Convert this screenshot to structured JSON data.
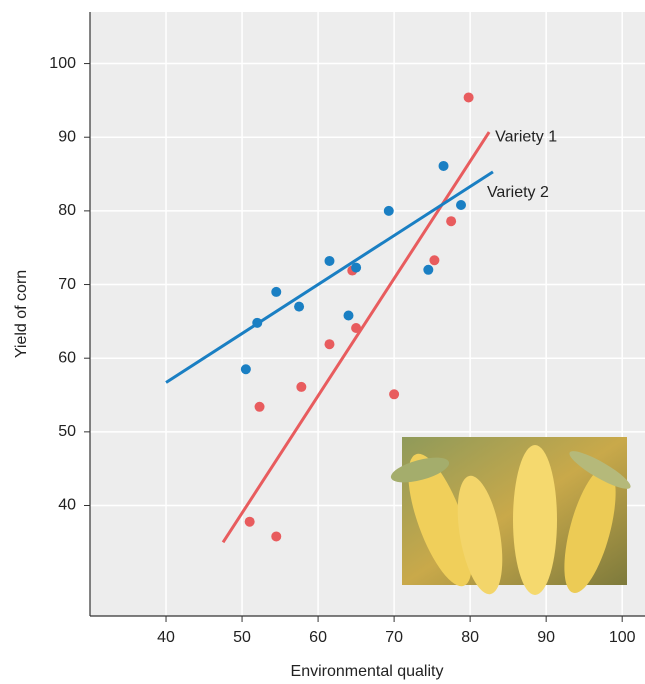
{
  "chart_data": {
    "type": "scatter",
    "xlabel": "Environmental quality",
    "ylabel": "Yield of corn",
    "xlim": [
      30,
      103
    ],
    "ylim": [
      25,
      107
    ],
    "xticks": [
      40,
      50,
      60,
      70,
      80,
      90,
      100
    ],
    "yticks": [
      40,
      50,
      60,
      70,
      80,
      90,
      100
    ],
    "grid": true,
    "series": [
      {
        "name": "Variety 1",
        "color": "#e85c5e",
        "x": [
          51,
          52.3,
          54.5,
          57.8,
          61.5,
          64.5,
          65,
          70,
          75.3,
          77.5,
          79.8
        ],
        "values": [
          37.8,
          53.4,
          35.8,
          56.1,
          61.9,
          71.9,
          64.1,
          55.1,
          73.3,
          78.6,
          95.4
        ],
        "fit": {
          "x": [
            47.5,
            82.5
          ],
          "values": [
            35,
            90.7
          ]
        }
      },
      {
        "name": "Variety 2",
        "color": "#1a7fc3",
        "x": [
          50.5,
          52,
          54.5,
          57.5,
          61.5,
          64,
          65,
          69.3,
          74.5,
          76.5,
          78.8
        ],
        "values": [
          58.5,
          64.8,
          69,
          67,
          73.2,
          65.8,
          72.3,
          80,
          72,
          86.1,
          80.8
        ],
        "fit": {
          "x": [
            40,
            83
          ],
          "values": [
            56.7,
            85.3
          ]
        }
      }
    ]
  }
}
